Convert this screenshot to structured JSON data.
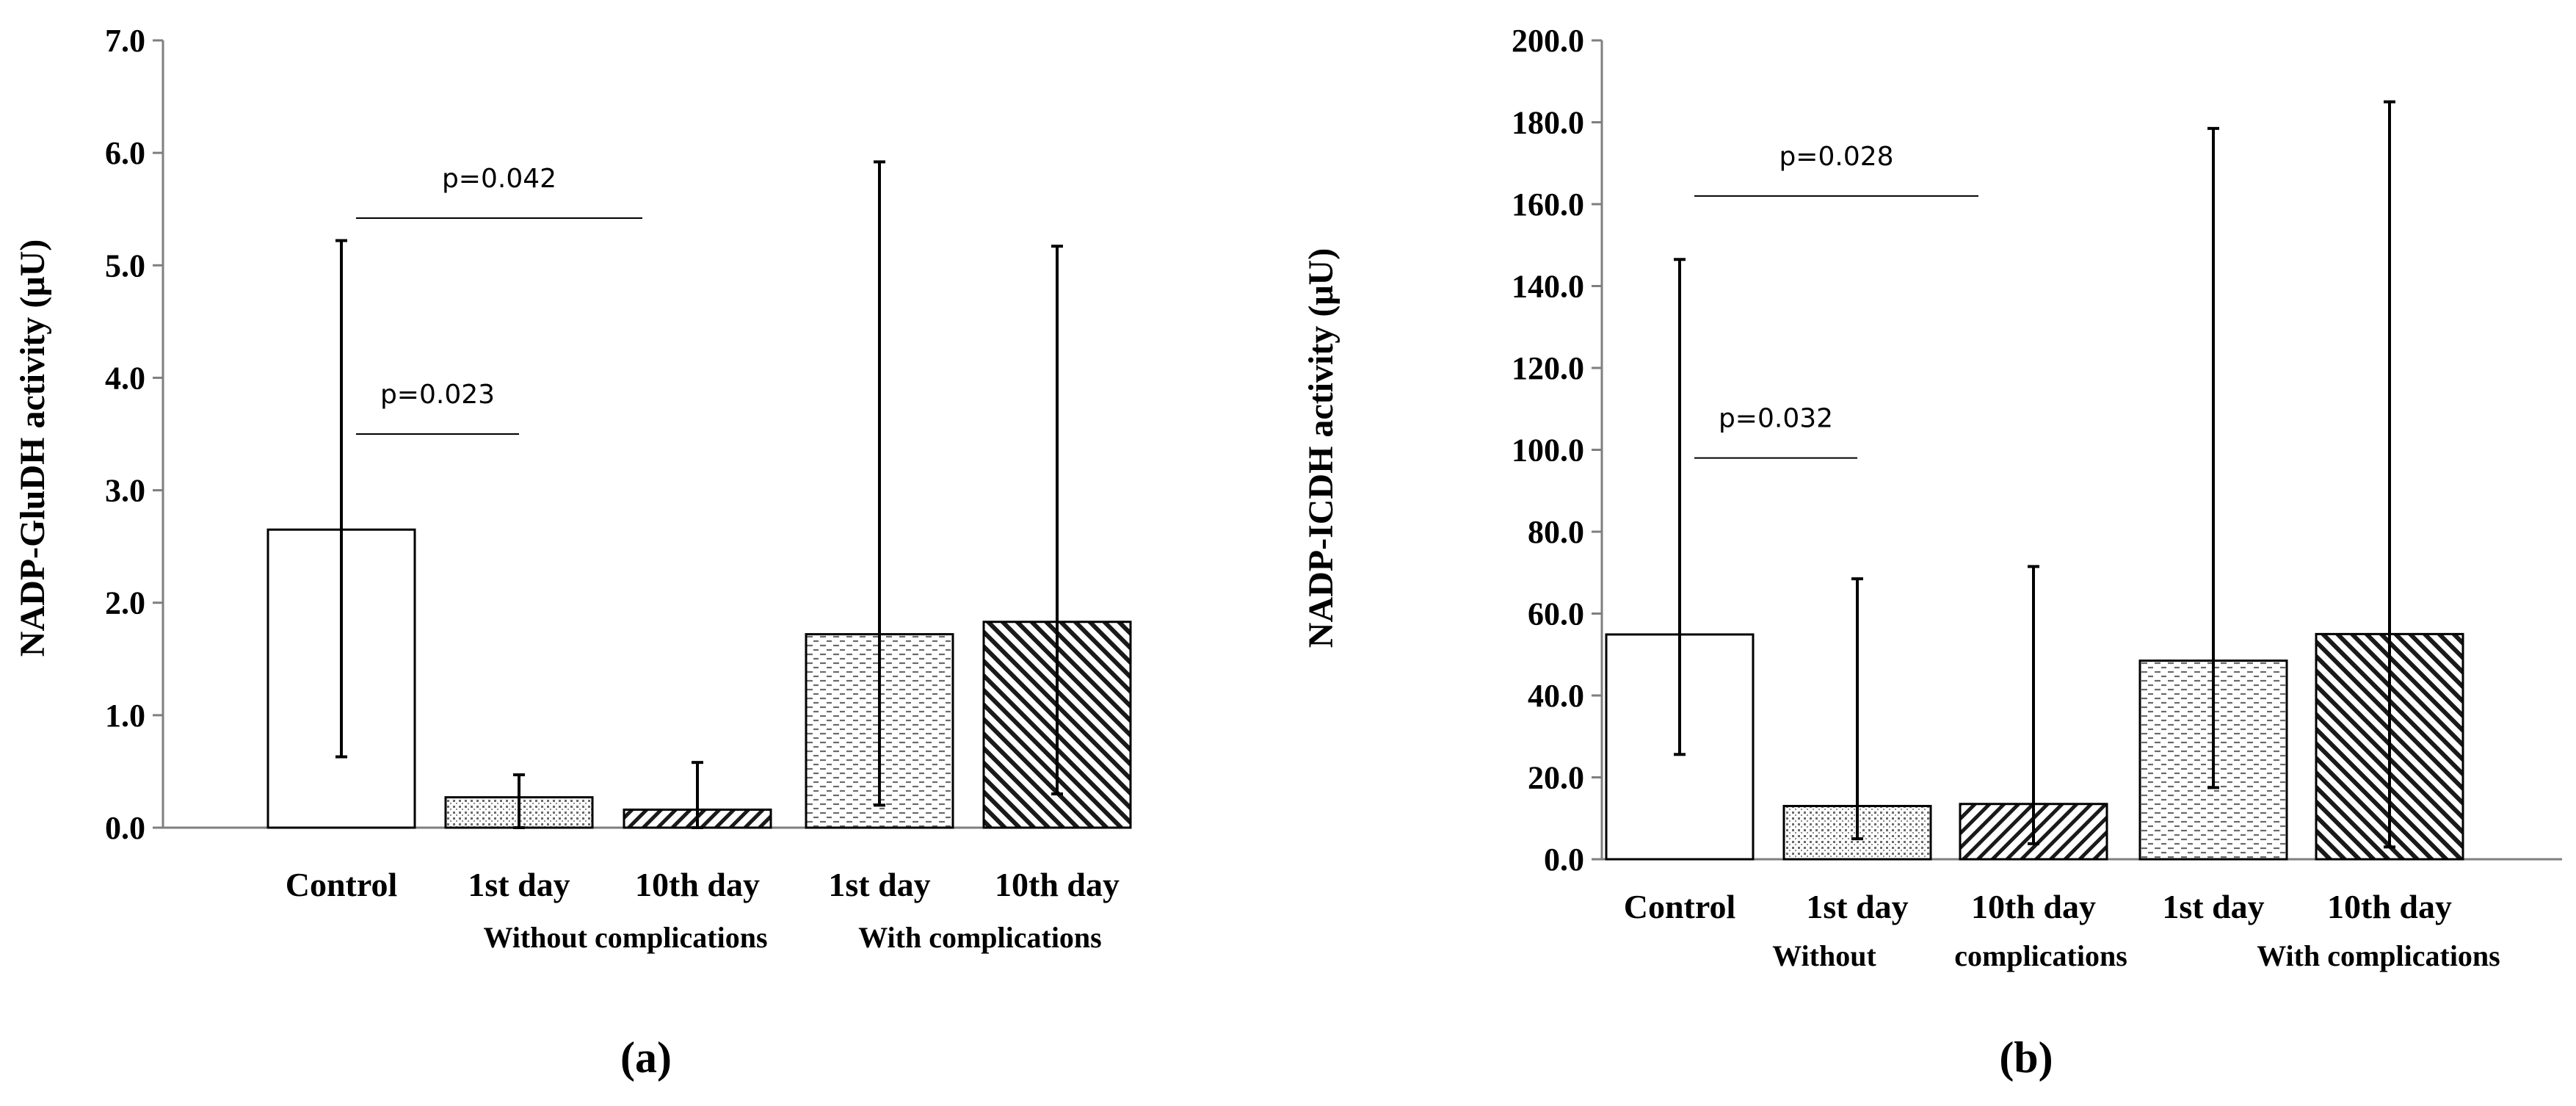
{
  "chart_data": [
    {
      "type": "bar",
      "panel": "(a)",
      "ylabel": "NADP-GluDH activity (μU)",
      "ylim": [
        0,
        7
      ],
      "yticks": [
        "0.0",
        "1.0",
        "2.0",
        "3.0",
        "4.0",
        "5.0",
        "6.0",
        "7.0"
      ],
      "categories": [
        "Control",
        "1st day",
        "10th day",
        "1st day",
        "10th day"
      ],
      "groups": [
        "Without complications",
        "With complications"
      ],
      "patterns": [
        "none",
        "dots",
        "diag-back",
        "dashes",
        "diag-fwd"
      ],
      "values": [
        2.65,
        0.27,
        0.16,
        1.72,
        1.83
      ],
      "err_low": [
        0.63,
        0.0,
        0.0,
        0.2,
        0.3
      ],
      "err_high": [
        5.22,
        0.47,
        0.58,
        5.92,
        5.17
      ],
      "annotations": [
        {
          "text": "p=0.042",
          "from": 0,
          "to": 2,
          "y": 5.42
        },
        {
          "text": "p=0.023",
          "from": 0,
          "to": 1,
          "y": 3.5
        }
      ]
    },
    {
      "type": "bar",
      "panel": "(b)",
      "ylabel": "NADP-ICDH activity (μU)",
      "ylim": [
        0,
        200
      ],
      "yticks": [
        "0.0",
        "20.0",
        "40.0",
        "60.0",
        "80.0",
        "100.0",
        "120.0",
        "140.0",
        "160.0",
        "180.0",
        "200.0"
      ],
      "categories": [
        "Control",
        "1st day",
        "10th day",
        "1st day",
        "10th day"
      ],
      "groups": [
        "Without",
        "complications",
        "With complications"
      ],
      "patterns": [
        "none",
        "dots",
        "diag-back",
        "dashes",
        "diag-fwd"
      ],
      "values": [
        54.9,
        13.0,
        13.5,
        48.5,
        55.0
      ],
      "err_low": [
        25.6,
        5.0,
        3.8,
        17.5,
        3.0
      ],
      "err_high": [
        146.5,
        68.5,
        71.5,
        178.5,
        185.0
      ],
      "annotations": [
        {
          "text": "p=0.028",
          "from": 0,
          "to": 2,
          "y": 162.0
        },
        {
          "text": "p=0.032",
          "from": 0,
          "to": 1,
          "y": 98.0
        }
      ]
    }
  ]
}
